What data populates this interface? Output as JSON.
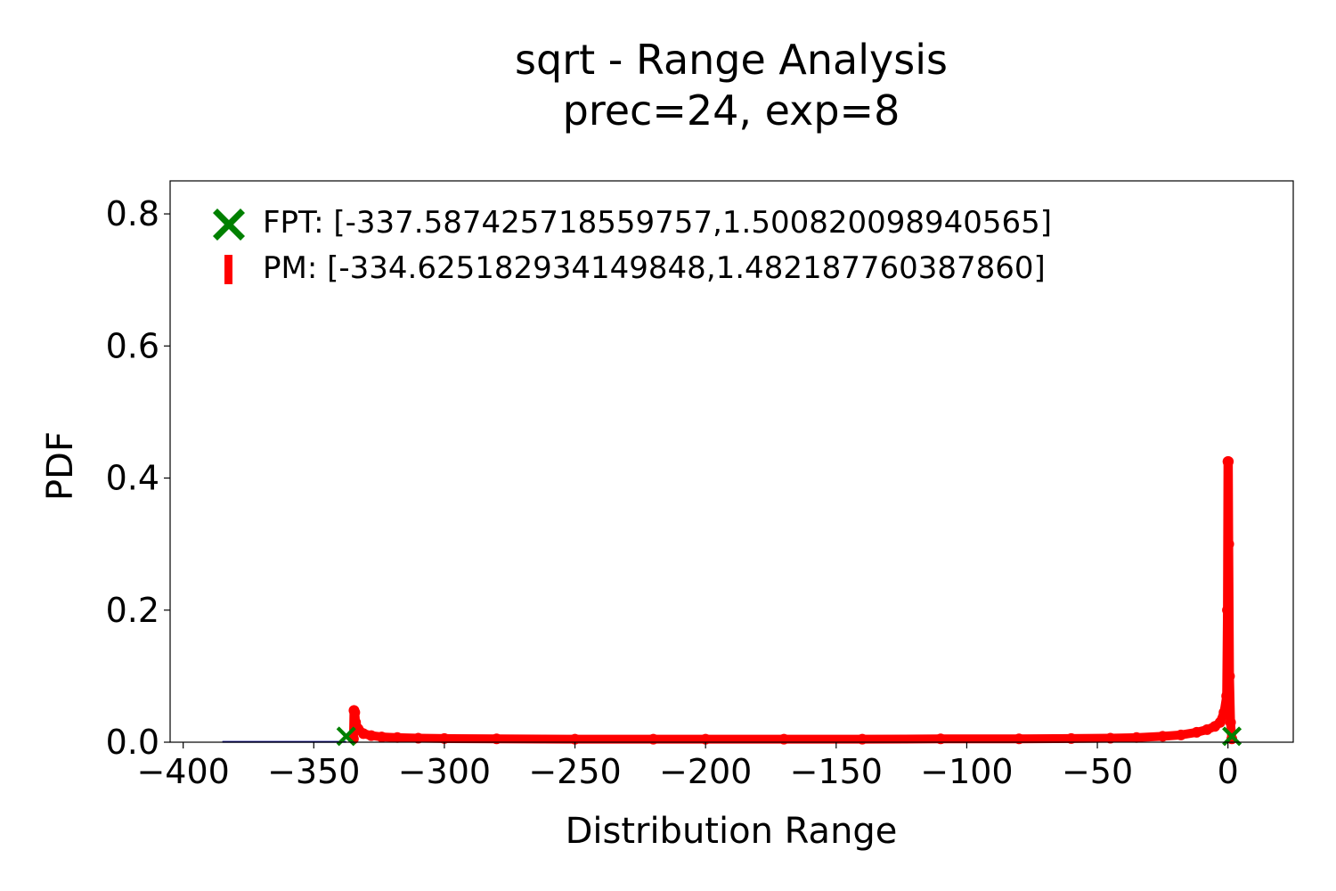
{
  "chart_data": {
    "type": "line",
    "title": "sqrt - Range Analysis",
    "subtitle": "prec=24, exp=8",
    "xlabel": "Distribution Range",
    "ylabel": "PDF",
    "xlim": [
      -405,
      25
    ],
    "ylim": [
      0,
      0.85
    ],
    "xticks": [
      -400,
      -350,
      -300,
      -250,
      -200,
      -150,
      -100,
      -50,
      0
    ],
    "xtick_labels": [
      "−400",
      "−350",
      "−300",
      "−250",
      "−200",
      "−150",
      "−100",
      "−50",
      "0"
    ],
    "yticks": [
      0.0,
      0.2,
      0.4,
      0.6,
      0.8
    ],
    "ytick_labels": [
      "0.0",
      "0.2",
      "0.4",
      "0.6",
      "0.8"
    ],
    "grid": false,
    "legend_position": "top-left",
    "series": [
      {
        "name": "FPT: [-337.587425718559757,1.500820098940565]",
        "kind": "markers",
        "marker": "x",
        "color": "#008000",
        "points": [
          [
            -337.587,
            0.009
          ],
          [
            1.501,
            0.009
          ]
        ]
      },
      {
        "name": "PM: [-334.625182934149848,1.482187760387860]",
        "kind": "thick-line",
        "marker": "|",
        "color": "#ff0000",
        "points": [
          [
            -334.8,
            0.005
          ],
          [
            -334.6,
            0.048
          ],
          [
            -334.3,
            0.045
          ],
          [
            -334.0,
            0.03
          ],
          [
            -333.0,
            0.02
          ],
          [
            -331.0,
            0.013
          ],
          [
            -328.0,
            0.01
          ],
          [
            -324.0,
            0.008
          ],
          [
            -318.0,
            0.007
          ],
          [
            -310.0,
            0.006
          ],
          [
            -300.0,
            0.0055
          ],
          [
            -280.0,
            0.005
          ],
          [
            -250.0,
            0.0045
          ],
          [
            -220.0,
            0.0045
          ],
          [
            -200.0,
            0.0045
          ],
          [
            -170.0,
            0.0045
          ],
          [
            -140.0,
            0.0045
          ],
          [
            -110.0,
            0.005
          ],
          [
            -80.0,
            0.005
          ],
          [
            -60.0,
            0.0055
          ],
          [
            -45.0,
            0.006
          ],
          [
            -35.0,
            0.007
          ],
          [
            -25.0,
            0.009
          ],
          [
            -18.0,
            0.011
          ],
          [
            -12.0,
            0.015
          ],
          [
            -8.0,
            0.019
          ],
          [
            -5.0,
            0.024
          ],
          [
            -3.0,
            0.03
          ],
          [
            -1.5,
            0.045
          ],
          [
            -0.5,
            0.07
          ],
          [
            -0.2,
            0.2
          ],
          [
            0.0,
            0.425
          ],
          [
            0.15,
            0.425
          ],
          [
            0.3,
            0.3
          ],
          [
            0.6,
            0.1
          ],
          [
            1.0,
            0.03
          ],
          [
            1.482,
            0.005
          ]
        ]
      },
      {
        "name": "",
        "kind": "thin-line",
        "color": "#00008b",
        "points": [
          [
            -385,
            0.0005
          ],
          [
            -337.6,
            0.0005
          ]
        ]
      }
    ]
  }
}
